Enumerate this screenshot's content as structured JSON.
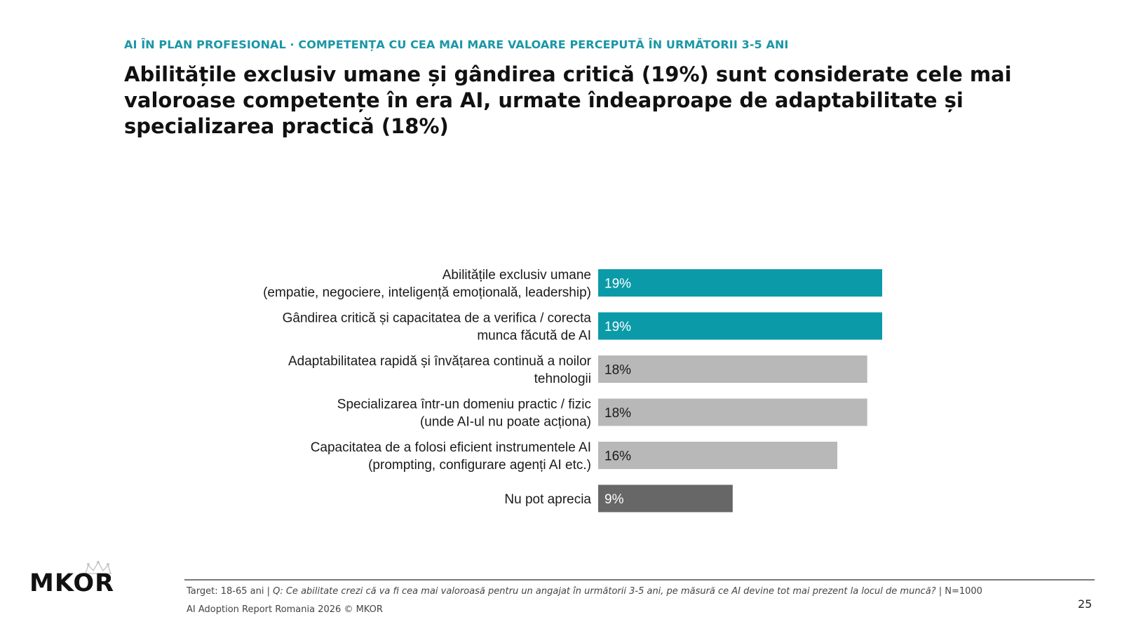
{
  "header": {
    "kicker": "AI ÎN PLAN PROFESIONAL · COMPETENȚA CU CEA MAI MARE VALOARE PERCEPUTĂ ÎN URMĂTORII 3-5 ANI",
    "headline": "Abilitățile exclusiv umane și gândirea critică (19%) sunt considerate cele mai valoroase competențe în era AI, urmate îndeaproape de adaptabilitate și specializarea practică (18%)"
  },
  "chart_data": {
    "type": "bar",
    "orientation": "horizontal",
    "categories": [
      [
        "Abilitățile exclusiv umane",
        "(empatie, negociere, inteligență emoțională, leadership)"
      ],
      [
        "Gândirea critică și capacitatea de a verifica / corecta",
        "munca făcută de AI"
      ],
      [
        "Adaptabilitatea rapidă și învățarea continuă a noilor",
        "tehnologii"
      ],
      [
        "Specializarea într-un domeniu practic / fizic",
        "(unde AI-ul nu poate acționa)"
      ],
      [
        "Capacitatea de a folosi eficient instrumentele AI",
        "(prompting, configurare agenți AI etc.)"
      ],
      [
        "Nu pot aprecia"
      ]
    ],
    "values": [
      19,
      19,
      18,
      18,
      16,
      9
    ],
    "value_labels": [
      "19%",
      "19%",
      "18%",
      "18%",
      "16%",
      "9%"
    ],
    "bar_colors": [
      "#0b9aa8",
      "#0b9aa8",
      "#b8b8b8",
      "#b8b8b8",
      "#b8b8b8",
      "#676767"
    ],
    "label_colors": [
      "#ffffff",
      "#ffffff",
      "#1a1a1a",
      "#1a1a1a",
      "#1a1a1a",
      "#ffffff"
    ],
    "xlim": [
      0,
      19
    ],
    "grid": false,
    "legend": "none"
  },
  "footer": {
    "logo_text": "MKOR",
    "target": "Target: 18-65 ani | ",
    "question_prefix": "Q: ",
    "question": "Ce abilitate crezi că va fi cea mai valoroasă pentru un angajat în următorii 3-5 ani, pe măsură ce AI devine tot mai prezent la locul de muncă?",
    "sample": " | N=1000",
    "copyright": "AI Adoption Report Romania 2026 © MKOR",
    "page_number": "25"
  }
}
